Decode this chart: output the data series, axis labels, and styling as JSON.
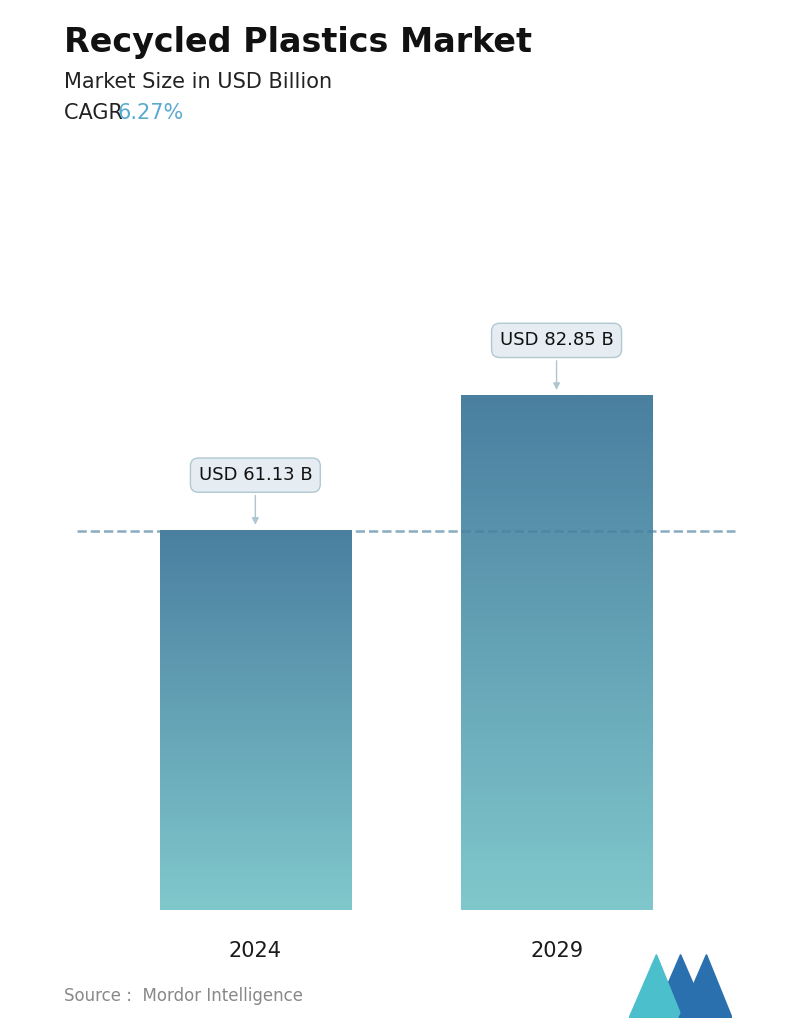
{
  "title": "Recycled Plastics Market",
  "subtitle": "Market Size in USD Billion",
  "cagr_label": "CAGR ",
  "cagr_value": "6.27%",
  "cagr_color": "#5aabcf",
  "categories": [
    "2024",
    "2029"
  ],
  "values": [
    61.13,
    82.85
  ],
  "bar_labels": [
    "USD 61.13 B",
    "USD 82.85 B"
  ],
  "bar_color_top": "#4a7fa0",
  "bar_color_bottom": "#80c8cc",
  "dashed_line_color": "#4a7fa0",
  "dashed_line_value": 61.13,
  "source_text": "Source :  Mordor Intelligence",
  "background_color": "#ffffff",
  "title_fontsize": 24,
  "subtitle_fontsize": 15,
  "cagr_fontsize": 15,
  "tick_fontsize": 15,
  "source_fontsize": 12,
  "label_fontsize": 13,
  "ylim": [
    0,
    100
  ],
  "bar_width": 0.28,
  "xlocs": [
    0.28,
    0.72
  ],
  "teal_color": "#4bbfcc",
  "blue_color": "#2a6fae"
}
